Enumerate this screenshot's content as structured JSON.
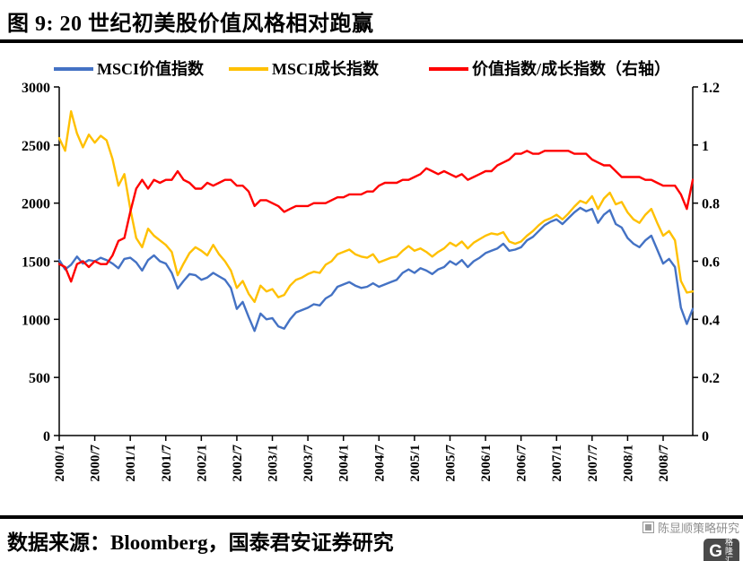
{
  "title": "图 9: 20 世纪初美股价值风格相对跑赢",
  "footer": {
    "source": "数据来源：Bloomberg，国泰君安证券研究",
    "watermark": "陈显顺策略研究",
    "logo_letter": "G",
    "logo_text": "格隆汇"
  },
  "chart_data": {
    "type": "line",
    "title": "图 9: 20 世纪初美股价值风格相对跑赢",
    "xlabel": "",
    "ylabel": "",
    "x_frequency": "monthly",
    "x_start": "2000/1",
    "x_end": "2008/12",
    "grid": false,
    "legend_position": "top",
    "x_tick_labels": [
      "2000/1",
      "2000/7",
      "2001/1",
      "2001/7",
      "2002/1",
      "2002/7",
      "2003/1",
      "2003/7",
      "2004/1",
      "2004/7",
      "2005/1",
      "2005/7",
      "2006/1",
      "2006/7",
      "2007/1",
      "2007/7",
      "2008/1",
      "2008/7"
    ],
    "left_axis": {
      "min": 0,
      "max": 3000,
      "step": 500,
      "ticks": [
        "3000",
        "2500",
        "2000",
        "1500",
        "1000",
        "500",
        "0"
      ]
    },
    "right_axis": {
      "min": 0,
      "max": 1.2,
      "step": 0.2,
      "ticks": [
        "1.2",
        "1",
        "0.8",
        "0.6",
        "0.4",
        "0.2",
        "0"
      ]
    },
    "series": [
      {
        "key": "msci-value-index",
        "name": "MSCI价值指数",
        "color": "#4472C4",
        "axis": "left",
        "values": [
          1510,
          1430,
          1470,
          1540,
          1480,
          1510,
          1500,
          1530,
          1510,
          1480,
          1440,
          1520,
          1530,
          1490,
          1420,
          1510,
          1550,
          1500,
          1480,
          1400,
          1265,
          1330,
          1390,
          1380,
          1340,
          1360,
          1400,
          1370,
          1340,
          1270,
          1090,
          1150,
          1020,
          900,
          1050,
          1000,
          1010,
          940,
          920,
          1000,
          1060,
          1080,
          1100,
          1130,
          1120,
          1180,
          1210,
          1280,
          1300,
          1320,
          1290,
          1270,
          1280,
          1310,
          1280,
          1300,
          1320,
          1340,
          1400,
          1430,
          1400,
          1440,
          1420,
          1390,
          1430,
          1450,
          1500,
          1470,
          1510,
          1450,
          1500,
          1530,
          1570,
          1590,
          1610,
          1650,
          1590,
          1600,
          1620,
          1680,
          1710,
          1760,
          1810,
          1840,
          1860,
          1820,
          1870,
          1920,
          1960,
          1930,
          1950,
          1830,
          1900,
          1940,
          1820,
          1790,
          1700,
          1650,
          1620,
          1680,
          1720,
          1600,
          1480,
          1520,
          1450,
          1100,
          960,
          1090
        ]
      },
      {
        "key": "msci-growth-index",
        "name": "MSCI成长指数",
        "color": "#FFC000",
        "axis": "left",
        "values": [
          2560,
          2450,
          2790,
          2600,
          2480,
          2590,
          2520,
          2580,
          2540,
          2380,
          2150,
          2250,
          1950,
          1700,
          1620,
          1780,
          1720,
          1680,
          1640,
          1580,
          1380,
          1480,
          1570,
          1620,
          1590,
          1550,
          1640,
          1560,
          1500,
          1420,
          1270,
          1330,
          1220,
          1150,
          1290,
          1240,
          1260,
          1190,
          1210,
          1290,
          1340,
          1360,
          1390,
          1410,
          1400,
          1470,
          1500,
          1560,
          1580,
          1600,
          1560,
          1540,
          1530,
          1560,
          1490,
          1510,
          1530,
          1540,
          1590,
          1630,
          1590,
          1610,
          1580,
          1540,
          1580,
          1610,
          1660,
          1630,
          1670,
          1610,
          1660,
          1690,
          1720,
          1740,
          1730,
          1750,
          1670,
          1650,
          1670,
          1720,
          1760,
          1810,
          1850,
          1870,
          1900,
          1860,
          1910,
          1970,
          2020,
          2000,
          2060,
          1950,
          2040,
          2090,
          1990,
          2010,
          1920,
          1860,
          1830,
          1900,
          1950,
          1830,
          1720,
          1760,
          1680,
          1330,
          1230,
          1240
        ]
      },
      {
        "key": "value-growth-ratio",
        "name": "价值指数/成长指数（右轴）",
        "color": "#FF0000",
        "axis": "right",
        "values": [
          0.59,
          0.58,
          0.53,
          0.59,
          0.6,
          0.58,
          0.6,
          0.59,
          0.59,
          0.62,
          0.67,
          0.68,
          0.77,
          0.85,
          0.88,
          0.85,
          0.88,
          0.87,
          0.88,
          0.88,
          0.91,
          0.88,
          0.87,
          0.85,
          0.85,
          0.87,
          0.86,
          0.87,
          0.88,
          0.88,
          0.86,
          0.86,
          0.84,
          0.79,
          0.81,
          0.81,
          0.8,
          0.79,
          0.77,
          0.78,
          0.79,
          0.79,
          0.79,
          0.8,
          0.8,
          0.8,
          0.81,
          0.82,
          0.82,
          0.83,
          0.83,
          0.83,
          0.84,
          0.84,
          0.86,
          0.87,
          0.87,
          0.87,
          0.88,
          0.88,
          0.89,
          0.9,
          0.92,
          0.91,
          0.9,
          0.91,
          0.9,
          0.89,
          0.9,
          0.88,
          0.89,
          0.9,
          0.91,
          0.91,
          0.93,
          0.94,
          0.95,
          0.97,
          0.97,
          0.98,
          0.97,
          0.97,
          0.98,
          0.98,
          0.98,
          0.98,
          0.98,
          0.97,
          0.97,
          0.97,
          0.95,
          0.94,
          0.93,
          0.93,
          0.91,
          0.89,
          0.89,
          0.89,
          0.89,
          0.88,
          0.88,
          0.87,
          0.86,
          0.86,
          0.86,
          0.83,
          0.78,
          0.88
        ]
      }
    ]
  }
}
